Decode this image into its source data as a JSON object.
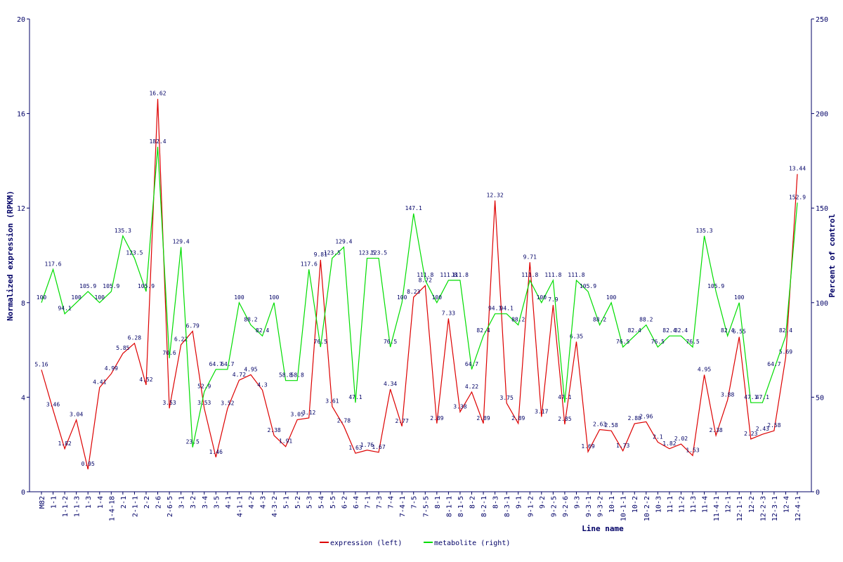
{
  "chart_data": {
    "type": "line",
    "xlabel": "Line name",
    "ylabel": "Normalized expression (RPKM)",
    "y2label": "Percent of control",
    "categories": [
      "M82",
      "1-1",
      "1-1-2",
      "1-1-3",
      "1-3",
      "1-4",
      "1-4-18",
      "2-1",
      "2-1-1",
      "2-2",
      "2-6",
      "2-6-5",
      "3-1",
      "3-2",
      "3-4",
      "3-5",
      "4-1",
      "4-1-1",
      "4-2",
      "4-3",
      "4-3-2",
      "5-1",
      "5-2",
      "5-3",
      "5-4",
      "5-5",
      "6-2",
      "6-4",
      "7-1",
      "7-3",
      "7-4",
      "7-4-1",
      "7-5",
      "7-5-5",
      "8-1",
      "8-1-1",
      "8-1-5",
      "8-2",
      "8-2-1",
      "8-3",
      "8-3-1",
      "9-1",
      "9-1-2",
      "9-2",
      "9-2-5",
      "9-2-6",
      "9-3",
      "9-3-1",
      "9-3-2",
      "10-1",
      "10-1-1",
      "10-2",
      "10-2-2",
      "10-3",
      "11-1",
      "11-2",
      "11-3",
      "11-4",
      "11-4-1",
      "12-1",
      "12-1-1",
      "12-2",
      "12-2-3",
      "12-3-1",
      "12-4",
      "12-4-1"
    ],
    "series": [
      {
        "name": "expression (left)",
        "color": "#dd0000",
        "axis": "y",
        "values": [
          5.16,
          3.46,
          1.82,
          3.04,
          0.95,
          4.41,
          4.99,
          5.85,
          6.28,
          4.52,
          16.62,
          3.53,
          6.22,
          6.79,
          3.53,
          1.46,
          3.52,
          4.72,
          4.95,
          4.3,
          2.38,
          1.91,
          3.05,
          3.12,
          9.81,
          3.61,
          2.78,
          1.63,
          1.76,
          1.67,
          4.34,
          2.77,
          8.23,
          8.72,
          2.89,
          7.33,
          3.38,
          4.22,
          2.89,
          12.32,
          3.75,
          2.89,
          9.71,
          3.17,
          7.9,
          2.85,
          6.35,
          1.69,
          2.63,
          2.58,
          1.73,
          2.88,
          2.96,
          2.1,
          1.82,
          2.02,
          1.53,
          4.95,
          2.38,
          3.88,
          6.55,
          2.23,
          2.43,
          2.58,
          5.69,
          13.44
        ]
      },
      {
        "name": "metabolite (right)",
        "color": "#00dd00",
        "axis": "y2",
        "values": [
          100,
          117.6,
          94.1,
          100,
          105.9,
          100,
          105.9,
          135.3,
          123.5,
          105.9,
          182.4,
          70.6,
          129.4,
          23.5,
          52.9,
          64.7,
          64.7,
          100,
          88.2,
          82.4,
          100,
          58.8,
          58.8,
          117.6,
          76.5,
          123.5,
          129.4,
          47.1,
          123.5,
          123.5,
          76.5,
          100,
          147.1,
          111.8,
          100,
          111.8,
          111.8,
          64.7,
          82.4,
          94.1,
          94.1,
          88.2,
          111.8,
          100,
          111.8,
          47.1,
          111.8,
          105.9,
          88.2,
          100,
          76.5,
          82.4,
          88.2,
          76.5,
          82.4,
          82.4,
          76.5,
          135.3,
          105.9,
          82.4,
          100,
          47.1,
          47.1,
          64.7,
          82.4,
          152.9
        ]
      }
    ],
    "ylim": [
      0,
      20
    ],
    "yticks": [
      0,
      4,
      8,
      12,
      16,
      20
    ],
    "y2lim": [
      0,
      250
    ],
    "y2ticks": [
      0,
      50,
      100,
      150,
      200,
      250
    ],
    "grid": false,
    "legend": "bottom"
  }
}
